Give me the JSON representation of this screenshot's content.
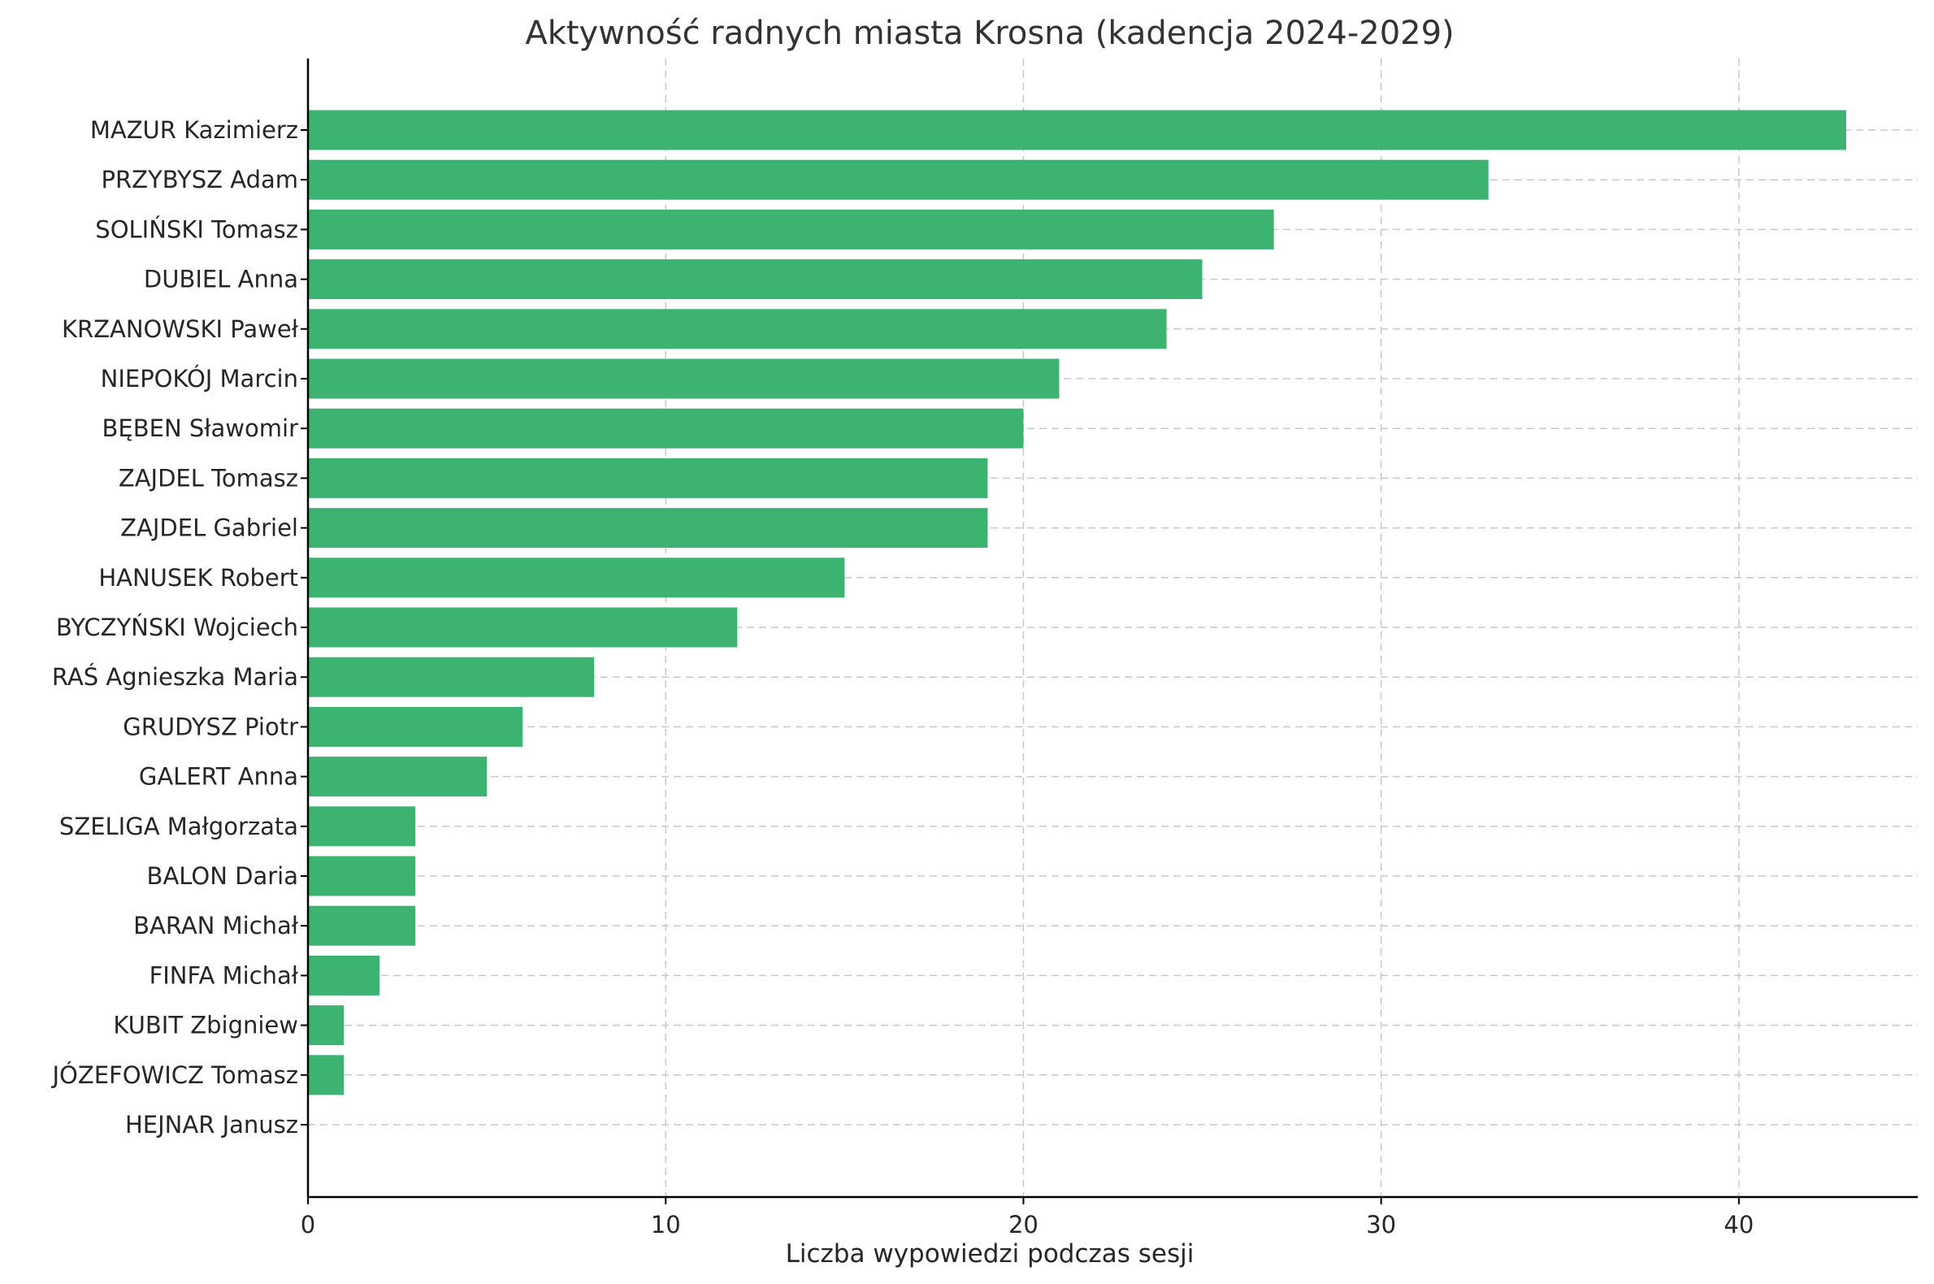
{
  "chart_data": {
    "type": "bar",
    "orientation": "horizontal",
    "title": "Aktywność radnych miasta Krosna (kadencja 2024-2029)",
    "xlabel": "Liczba wypowiedzi podczas sesji",
    "ylabel": "",
    "xlim": [
      0,
      45
    ],
    "xticks": [
      0,
      10,
      20,
      30,
      40
    ],
    "grid": true,
    "bar_color": "#3cb371",
    "categories": [
      "MAZUR Kazimierz",
      "PRZYBYSZ Adam",
      "SOLIŃSKI Tomasz",
      "DUBIEL Anna",
      "KRZANOWSKI Paweł",
      "NIEPOKÓJ Marcin",
      "BĘBEN Sławomir",
      "ZAJDEL Tomasz",
      "ZAJDEL Gabriel",
      "HANUSEK Robert",
      "BYCZYŃSKI Wojciech",
      "RAŚ Agnieszka Maria",
      "GRUDYSZ Piotr",
      "GALERT Anna",
      "SZELIGA Małgorzata",
      "BALON Daria",
      "BARAN Michał",
      "FINFA Michał",
      "KUBIT Zbigniew",
      "JÓZEFOWICZ Tomasz",
      "HEJNAR Janusz"
    ],
    "values": [
      43,
      33,
      27,
      25,
      24,
      21,
      20,
      19,
      19,
      15,
      12,
      8,
      6,
      5,
      3,
      3,
      3,
      2,
      1,
      1,
      0
    ]
  }
}
